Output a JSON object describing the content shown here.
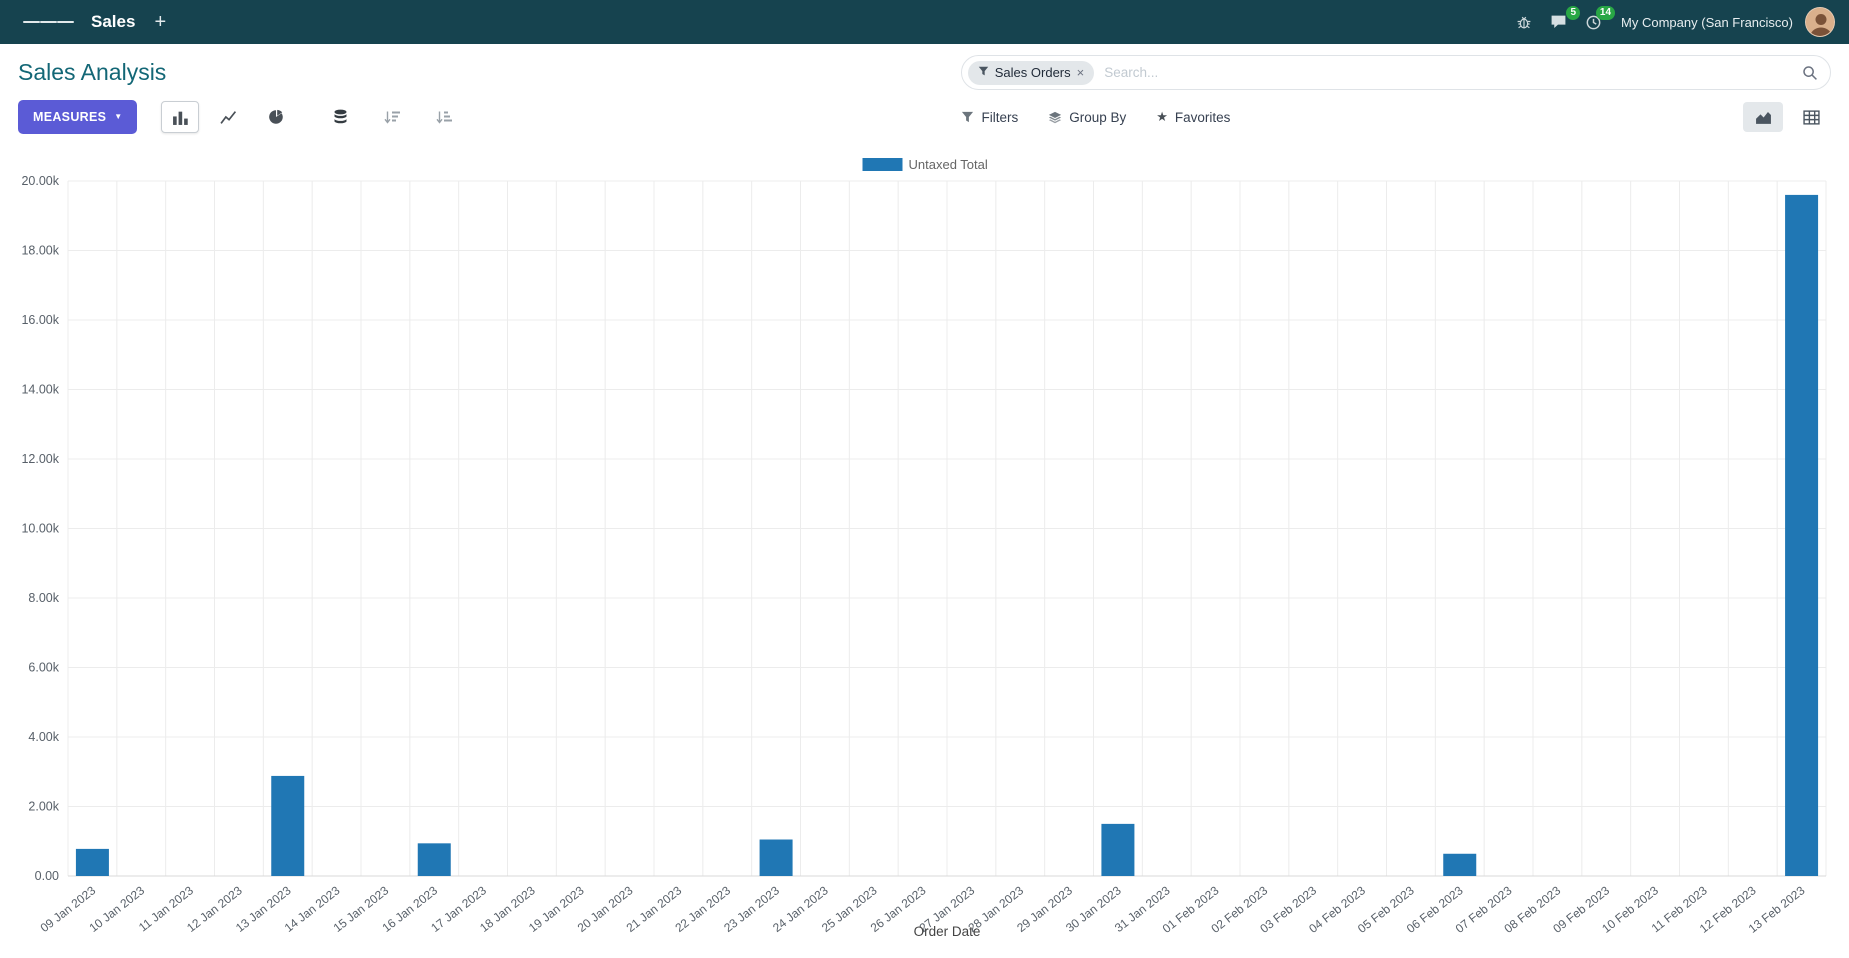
{
  "navbar": {
    "app_name": "Sales",
    "company": "My Company (San Francisco)",
    "messages_badge": "5",
    "activities_badge": "14"
  },
  "control_panel": {
    "title": "Sales Analysis",
    "measures_label": "MEASURES",
    "filters_label": "Filters",
    "group_by_label": "Group By",
    "favorites_label": "Favorites",
    "search": {
      "facet_label": "Sales Orders",
      "placeholder": "Search..."
    }
  },
  "icons": {
    "plus": "+",
    "close": "×",
    "caret_down": "▼",
    "star": "★"
  },
  "colors": {
    "navbar_bg": "#16434f",
    "accent": "#5b5bd6",
    "badge": "#28a745",
    "title": "#136776",
    "bar": "#2077b4",
    "grid": "#ececec",
    "axis_text": "#586069"
  },
  "chart_data": {
    "type": "bar",
    "title": "",
    "xlabel": "Order Date",
    "ylabel": "",
    "grid": true,
    "legend_position": "top",
    "ylim": [
      0,
      20000
    ],
    "y_ticks": [
      {
        "value": 0,
        "label": "0.00"
      },
      {
        "value": 2000,
        "label": "2.00k"
      },
      {
        "value": 4000,
        "label": "4.00k"
      },
      {
        "value": 6000,
        "label": "6.00k"
      },
      {
        "value": 8000,
        "label": "8.00k"
      },
      {
        "value": 10000,
        "label": "10.00k"
      },
      {
        "value": 12000,
        "label": "12.00k"
      },
      {
        "value": 14000,
        "label": "14.00k"
      },
      {
        "value": 16000,
        "label": "16.00k"
      },
      {
        "value": 18000,
        "label": "18.00k"
      },
      {
        "value": 20000,
        "label": "20.00k"
      }
    ],
    "categories": [
      "09 Jan 2023",
      "10 Jan 2023",
      "11 Jan 2023",
      "12 Jan 2023",
      "13 Jan 2023",
      "14 Jan 2023",
      "15 Jan 2023",
      "16 Jan 2023",
      "17 Jan 2023",
      "18 Jan 2023",
      "19 Jan 2023",
      "20 Jan 2023",
      "21 Jan 2023",
      "22 Jan 2023",
      "23 Jan 2023",
      "24 Jan 2023",
      "25 Jan 2023",
      "26 Jan 2023",
      "27 Jan 2023",
      "28 Jan 2023",
      "29 Jan 2023",
      "30 Jan 2023",
      "31 Jan 2023",
      "01 Feb 2023",
      "02 Feb 2023",
      "03 Feb 2023",
      "04 Feb 2023",
      "05 Feb 2023",
      "06 Feb 2023",
      "07 Feb 2023",
      "08 Feb 2023",
      "09 Feb 2023",
      "10 Feb 2023",
      "11 Feb 2023",
      "12 Feb 2023",
      "13 Feb 2023"
    ],
    "series": [
      {
        "name": "Untaxed Total",
        "color": "#2077b4",
        "values": [
          780,
          0,
          0,
          0,
          2880,
          0,
          0,
          940,
          0,
          0,
          0,
          0,
          0,
          0,
          1050,
          0,
          0,
          0,
          0,
          0,
          0,
          1500,
          0,
          0,
          0,
          0,
          0,
          0,
          640,
          0,
          0,
          0,
          0,
          0,
          0,
          19600
        ]
      }
    ]
  }
}
